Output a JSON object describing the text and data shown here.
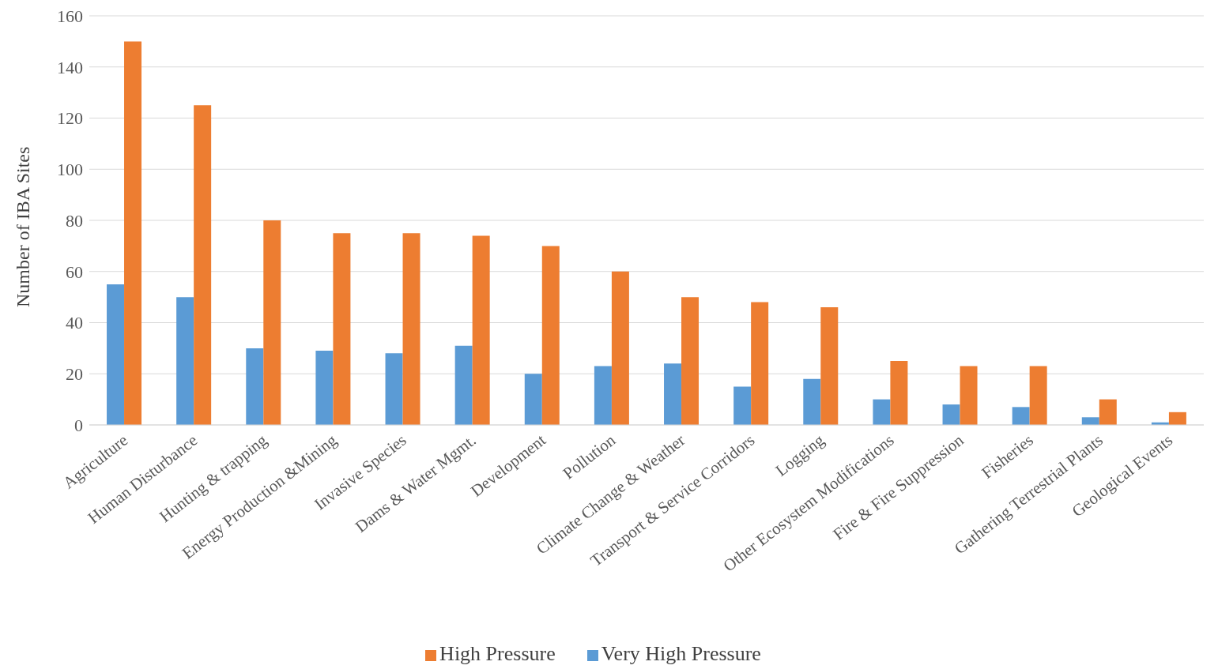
{
  "chart_data": {
    "type": "bar",
    "ylabel": "Number of IBA Sites",
    "categories": [
      "Agriculture",
      "Human Disturbance",
      "Hunting & trapping",
      "Energy Production &Mining",
      "Invasive Species",
      "Dams & Water Mgmt.",
      "Development",
      "Pollution",
      "Climate Change & Weather",
      "Transport & Service Corridors",
      "Logging",
      "Other Ecosystem Modifications",
      "Fire & Fire Suppression",
      "Fisheries",
      "Gathering Terrestrial Plants",
      "Geological Events"
    ],
    "series": [
      {
        "name": "Very High Pressure",
        "color": "#5b9bd5",
        "values": [
          55,
          50,
          30,
          29,
          28,
          31,
          20,
          23,
          24,
          15,
          18,
          10,
          8,
          7,
          3,
          1
        ]
      },
      {
        "name": "High Pressure",
        "color": "#ed7d31",
        "values": [
          150,
          125,
          80,
          75,
          75,
          74,
          70,
          60,
          50,
          48,
          46,
          25,
          23,
          23,
          10,
          5
        ]
      }
    ],
    "ylim": [
      0,
      160
    ],
    "yticks": [
      0,
      20,
      40,
      60,
      80,
      100,
      120,
      140,
      160
    ],
    "grid": "y",
    "legend": "bottom"
  }
}
